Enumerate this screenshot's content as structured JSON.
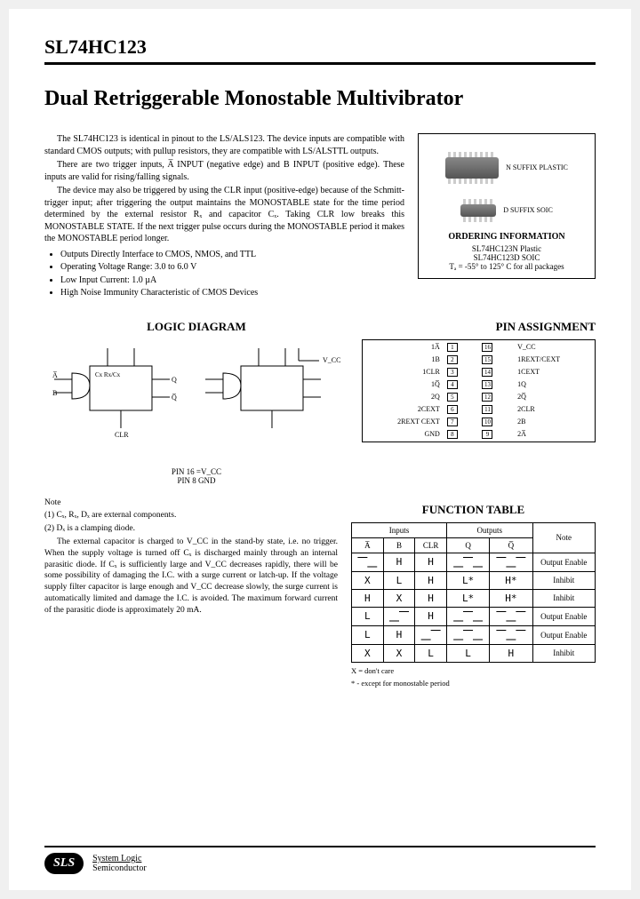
{
  "header": {
    "part_number": "SL74HC123"
  },
  "title": "Dual Retriggerable Monostable  Multivibrator",
  "description": {
    "p1": "The SL74HC123 is identical in pinout to the LS/ALS123. The device inputs are compatible with standard CMOS outputs; with pullup resistors, they are compatible with LS/ALSTTL outputs.",
    "p2": "There are two trigger inputs, A̅ INPUT (negative edge) and B INPUT (positive edge). These inputs are valid for rising/falling signals.",
    "p3": "The device may also be triggered by using the CLR input (positive-edge) because of the Schmitt-trigger input; after triggering the output maintains the MONOSTABLE state for the time period determined by the external resistor Rₓ and capacitor Cₓ. Taking CLR low breaks this MONOSTABLE STATE. If the next trigger pulse occurs during the MONOSTABLE period it makes the MONOSTABLE period longer.",
    "bullets": [
      "Outputs Directly Interface to CMOS, NMOS, and TTL",
      "Operating Voltage Range: 3.0 to 6.0 V",
      "Low Input Current: 1.0 µA",
      "High Noise Immunity Characteristic of CMOS Devices"
    ]
  },
  "ordering": {
    "suffix1": "N SUFFIX PLASTIC",
    "suffix2": "D SUFFIX SOIC",
    "title": "ORDERING INFORMATION",
    "line1": "SL74HC123N Plastic",
    "line2": "SL74HC123D SOIC",
    "temp": "Tₐ = -55° to 125° C for all packages"
  },
  "sections": {
    "logic": "LOGIC DIAGRAM",
    "pin": "PIN ASSIGNMENT",
    "func": "FUNCTION TABLE"
  },
  "logic_note": {
    "l1": "PIN 16 =V_CC",
    "l2": "PIN 8   GND"
  },
  "pins": {
    "left": [
      "1A̅",
      "1B",
      "1CLR",
      "1Q̅",
      "2Q",
      "2CEXT",
      "2REXT CEXT",
      "GND"
    ],
    "right": [
      "V_CC",
      "1REXT/CEXT",
      "1CEXT",
      "1Q",
      "2Q̅",
      "2CLR",
      "2B",
      "2A̅"
    ],
    "nums_left": [
      "1",
      "2",
      "3",
      "4",
      "5",
      "6",
      "7",
      "8"
    ],
    "nums_right": [
      "16",
      "15",
      "14",
      "13",
      "12",
      "11",
      "10",
      "9"
    ]
  },
  "notes": {
    "heading": "Note",
    "n1": "(1) Cₓ, Rₓ, Dₓ are external components.",
    "n2": "(2) Dₓ is a clamping diode.",
    "body": "The external capacitor is charged to V_CC in the stand-by state, i.e. no trigger. When the supply voltage is turned off Cₓ is discharged mainly through an internal parasitic diode. If Cₓ is sufficiently large and V_CC decreases rapidly, there will be some possibility of damaging the I.C. with a surge current or latch-up. If the voltage supply filter capacitor is large enough and V_CC decrease slowly, the surge current is automatically limited and damage the I.C. is avoided. The maximum forward current of the parasitic diode is approximately 20 mA."
  },
  "func_table": {
    "head_inputs": "Inputs",
    "head_outputs": "Outputs",
    "head_note": "Note",
    "cols": [
      "A̅",
      "B",
      "CLR",
      "Q",
      "Q̅"
    ],
    "rows": [
      {
        "c": [
          "⎺⎽",
          "H",
          "H",
          "⎽⎺⎽",
          "⎺⎽⎺"
        ],
        "note": "Output Enable"
      },
      {
        "c": [
          "X",
          "L",
          "H",
          "L*",
          "H*"
        ],
        "note": "Inhibit"
      },
      {
        "c": [
          "H",
          "X",
          "H",
          "L*",
          "H*"
        ],
        "note": "Inhibit"
      },
      {
        "c": [
          "L",
          "⎽⎺",
          "H",
          "⎽⎺⎽",
          "⎺⎽⎺"
        ],
        "note": "Output Enable"
      },
      {
        "c": [
          "L",
          "H",
          "⎽⎺",
          "⎽⎺⎽",
          "⎺⎽⎺"
        ],
        "note": "Output Enable"
      },
      {
        "c": [
          "X",
          "X",
          "L",
          "L",
          "H"
        ],
        "note": "Inhibit"
      }
    ],
    "legend1": "X = don't care",
    "legend2": "* - except for monostable period"
  },
  "footer": {
    "logo": "SLS",
    "line1": "System Logic",
    "line2": "Semiconductor"
  },
  "colors": {
    "text": "#000000",
    "background": "#ffffff",
    "border": "#000000"
  }
}
